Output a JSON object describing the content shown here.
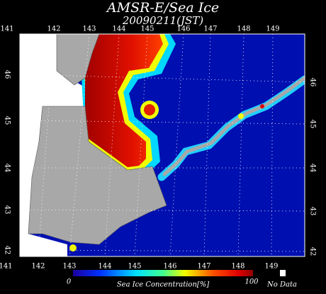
{
  "header": {
    "title": "AMSR-E/Sea Ice",
    "date": "20090211(JST)"
  },
  "axes": {
    "top_longitudes": [
      "141",
      "142",
      "143",
      "144",
      "145",
      "146",
      "147",
      "148",
      "149"
    ],
    "bottom_longitudes": [
      "141",
      "142",
      "143",
      "144",
      "145",
      "146",
      "147",
      "148",
      "149"
    ],
    "left_latitudes": [
      "46",
      "45",
      "44",
      "43",
      "42"
    ],
    "right_latitudes": [
      "46",
      "45",
      "44",
      "43",
      "42"
    ]
  },
  "colorbar": {
    "min_label": "0",
    "max_label": "100",
    "title": "Sea Ice Concentration[%]",
    "no_data_label": "No Data"
  }
}
